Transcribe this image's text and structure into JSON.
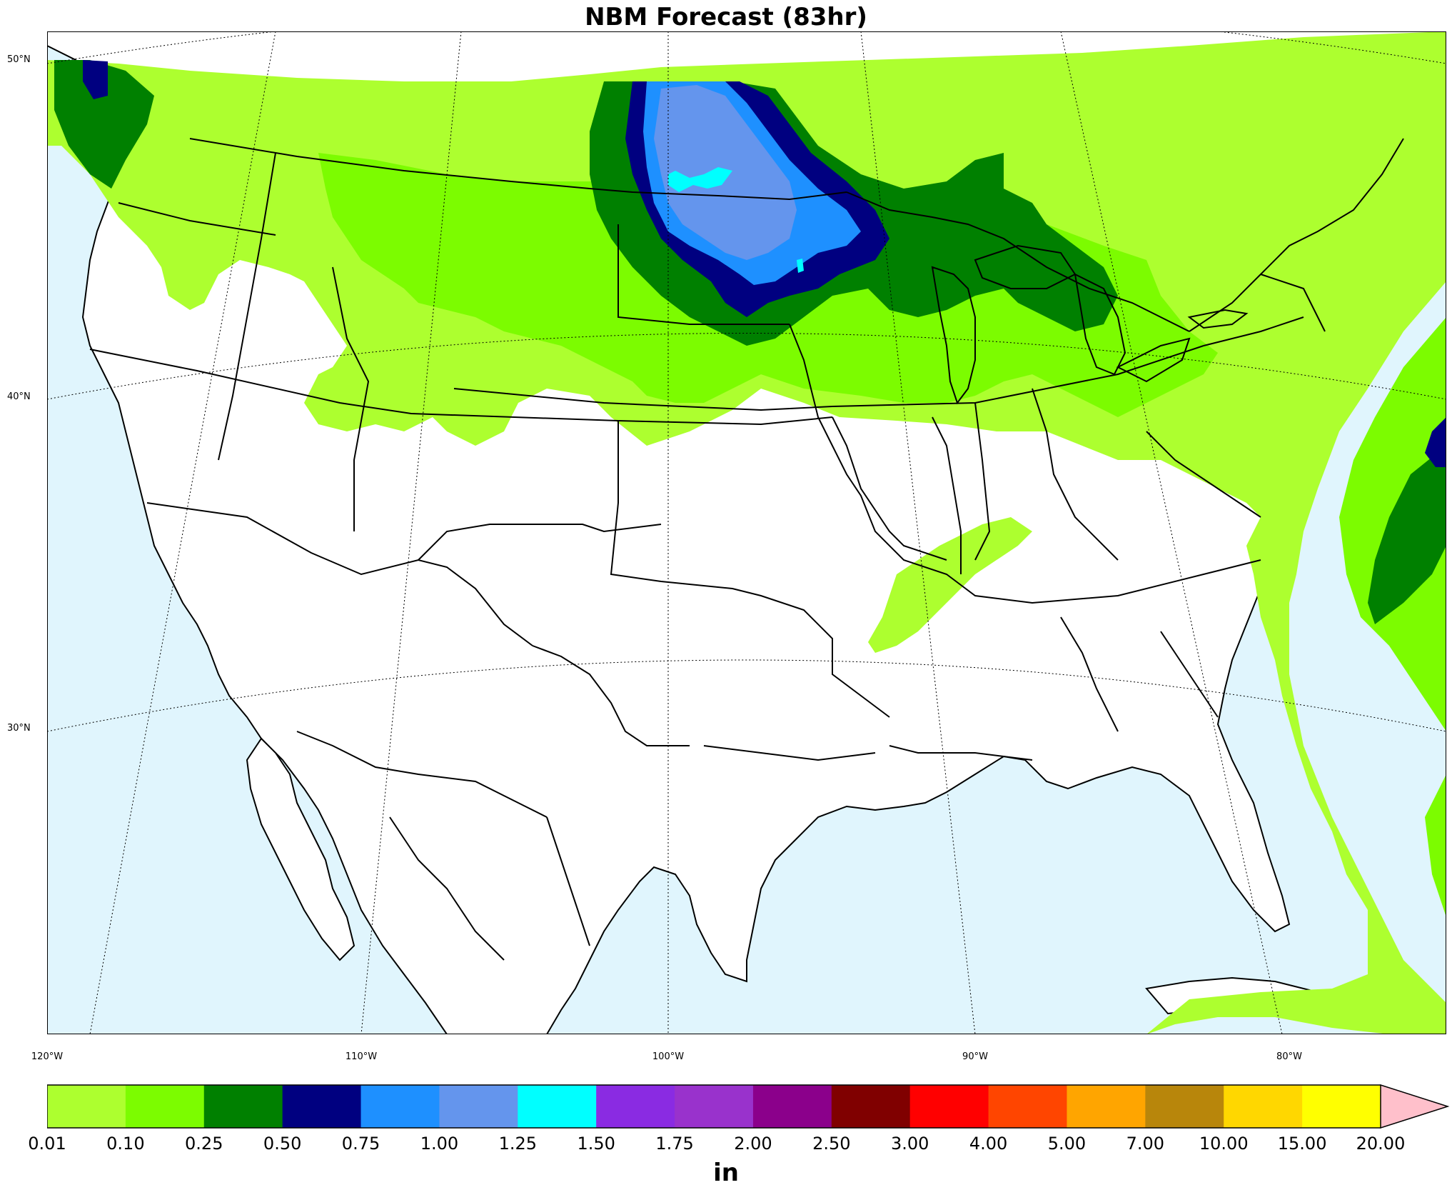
{
  "title": "NBM Forecast (83hr)",
  "units": "in",
  "lat_labels": [
    {
      "value": 50,
      "text": "50°N"
    },
    {
      "value": 40,
      "text": "40°N"
    },
    {
      "value": 30,
      "text": "30°N"
    }
  ],
  "lon_labels": [
    {
      "value": -120,
      "text": "120°W"
    },
    {
      "value": -110,
      "text": "110°W"
    },
    {
      "value": -100,
      "text": "100°W"
    },
    {
      "value": -90,
      "text": "90°W"
    },
    {
      "value": -80,
      "text": "80°W"
    }
  ],
  "colorbar": {
    "ticks": [
      "0.01",
      "0.10",
      "0.25",
      "0.50",
      "0.75",
      "1.00",
      "1.25",
      "1.50",
      "1.75",
      "2.00",
      "2.50",
      "3.00",
      "4.00",
      "5.00",
      "7.00",
      "10.00",
      "15.00",
      "20.00"
    ],
    "colors": [
      "#adff2f",
      "#7cfc00",
      "#008000",
      "#000080",
      "#1e90ff",
      "#6495ed",
      "#00ffff",
      "#8a2be2",
      "#9932cc",
      "#8b008b",
      "#800000",
      "#ff0000",
      "#ff4500",
      "#ffa500",
      "#b8860b",
      "#ffd700",
      "#ffff00"
    ],
    "extend_color": "#ffc0cb"
  },
  "colors": {
    "ocean": "#e0f5fd",
    "land": "#ffffff"
  }
}
